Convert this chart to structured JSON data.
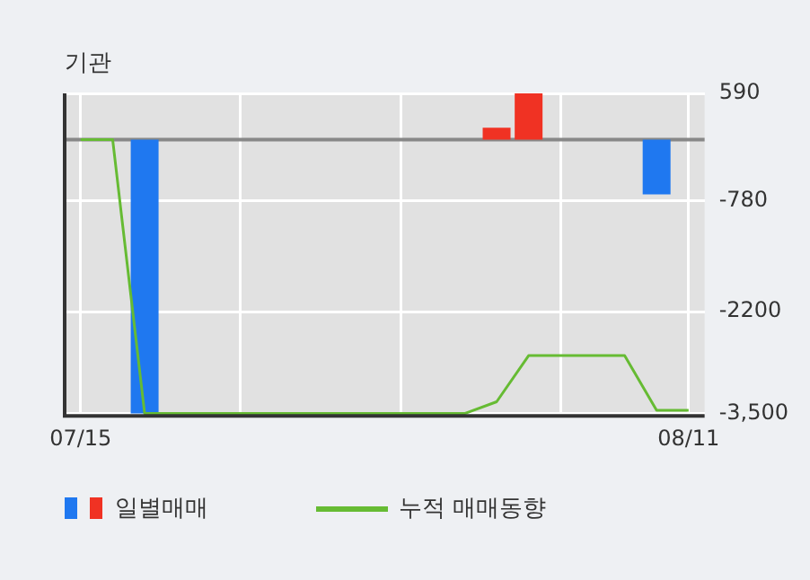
{
  "chart_data": {
    "type": "bar",
    "title": "기관",
    "categories": [
      "07/15",
      null,
      null,
      null,
      null,
      null,
      null,
      null,
      null,
      null,
      null,
      null,
      null,
      null,
      null,
      null,
      null,
      null,
      null,
      "08/11"
    ],
    "series": [
      {
        "name": "일별매매",
        "values": [
          null,
          null,
          -3500,
          null,
          null,
          null,
          null,
          null,
          null,
          null,
          null,
          null,
          null,
          150,
          590,
          null,
          null,
          null,
          -700,
          null
        ],
        "colors": [
          "#1f78f0",
          "#1f78f0",
          "#1f78f0",
          "#1f78f0",
          "#1f78f0",
          "#1f78f0",
          "#1f78f0",
          "#1f78f0",
          "#1f78f0",
          "#1f78f0",
          "#1f78f0",
          "#1f78f0",
          "#1f78f0",
          "#f03223",
          "#f03223",
          "#1f78f0",
          "#1f78f0",
          "#1f78f0",
          "#1f78f0",
          "#1f78f0"
        ]
      },
      {
        "name": "누적 매매동향",
        "type": "line",
        "color": "#66bb33",
        "values": [
          0,
          0,
          -3500,
          -3500,
          -3500,
          -3500,
          -3500,
          -3500,
          -3500,
          -3500,
          -3500,
          -3500,
          -3500,
          -3350,
          -2760,
          -2760,
          -2760,
          -2760,
          -3460,
          -3460
        ]
      }
    ],
    "ylim": [
      -3530,
      590
    ],
    "yticks": [
      590,
      -780,
      -2200,
      {
        "value": -3500,
        "label": "-3,500"
      }
    ],
    "ref_lines": [
      {
        "axis": "y",
        "value": 0,
        "color": "#888888"
      }
    ],
    "grid": true,
    "legend": "bottom",
    "marker": "none",
    "line_style": "solid"
  }
}
